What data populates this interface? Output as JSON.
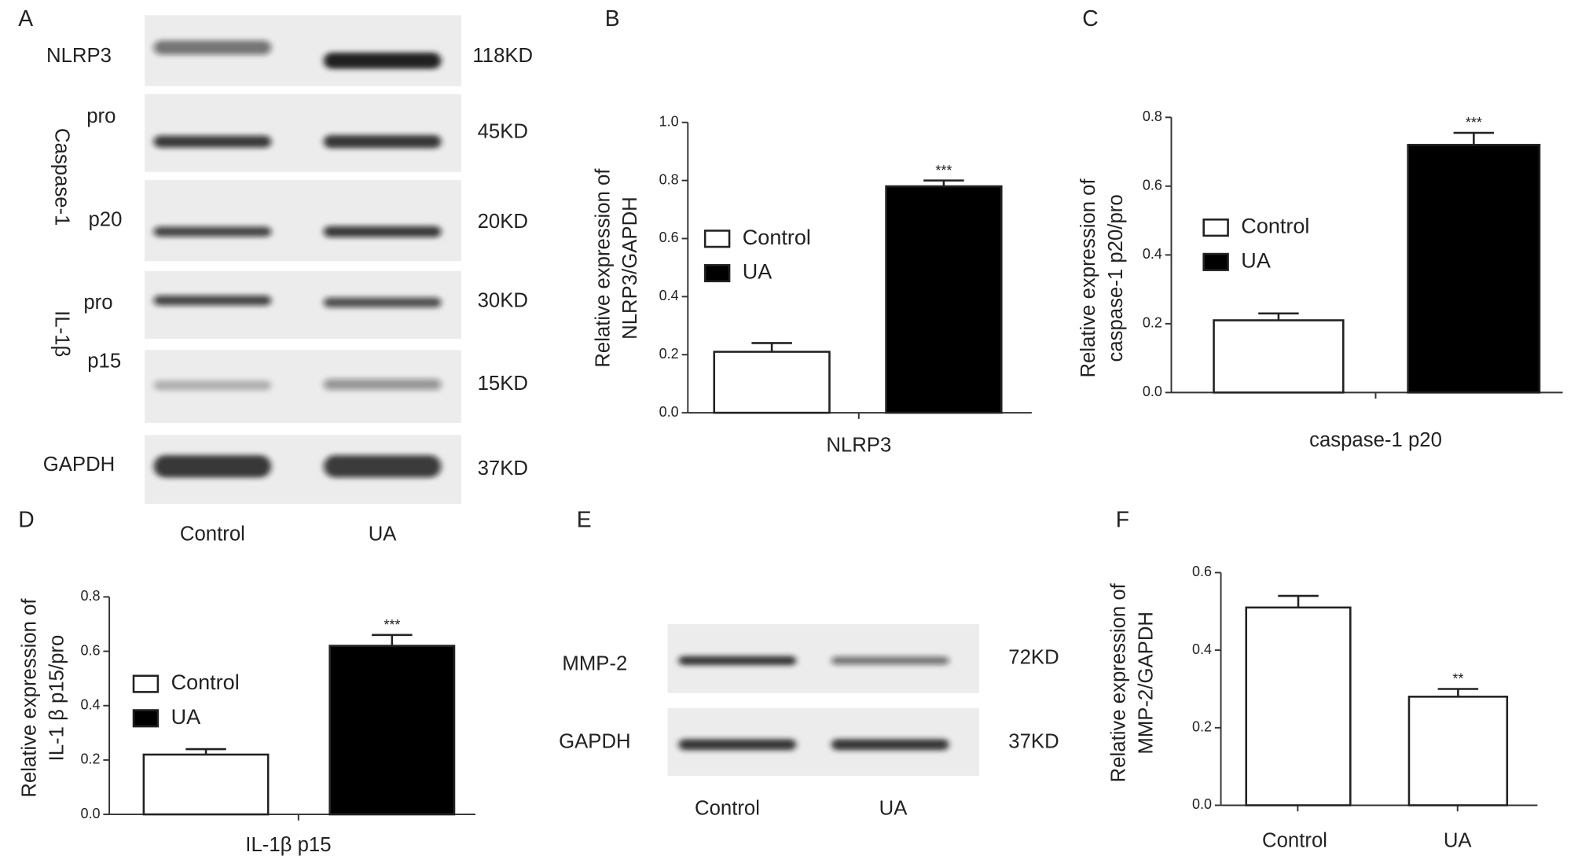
{
  "blots": [
    {
      "panel": "A",
      "lanes": [
        "Control",
        "UA"
      ],
      "groups": [
        {
          "rows": [
            {
              "label": "NLRP3",
              "size": "118KD"
            }
          ]
        },
        {
          "label": "Caspase-1",
          "rows": [
            {
              "label": "pro",
              "size": "45KD"
            },
            {
              "label": "p20",
              "size": "20KD"
            }
          ]
        },
        {
          "label": "IL-1β",
          "rows": [
            {
              "label": "pro",
              "size": "30KD"
            },
            {
              "label": "p15",
              "size": "15KD"
            }
          ]
        },
        {
          "rows": [
            {
              "label": "GAPDH",
              "size": "37KD"
            }
          ]
        }
      ]
    },
    {
      "panel": "E",
      "lanes": [
        "Control",
        "UA"
      ],
      "groups": [
        {
          "rows": [
            {
              "label": "MMP-2",
              "size": "72KD"
            },
            {
              "label": "GAPDH",
              "size": "37KD"
            }
          ]
        }
      ]
    }
  ],
  "chart_data": [
    {
      "type": "bar",
      "panel": "B",
      "ylabel": [
        "Relative expression of",
        "NLRP3/GAPDH"
      ],
      "categories": [
        "NLRP3"
      ],
      "series": [
        {
          "name": "Control",
          "color": "#ffffff",
          "values": [
            0.21
          ],
          "errors": [
            0.03
          ],
          "annotations": [
            null
          ]
        },
        {
          "name": "UA",
          "color": "#000000",
          "values": [
            0.78
          ],
          "errors": [
            0.02
          ],
          "annotations": [
            "***"
          ]
        }
      ],
      "ylim": [
        0,
        1
      ],
      "yticks": [
        {
          "value": 0,
          "label": "0.0"
        },
        0.2,
        0.4,
        0.6,
        0.8,
        {
          "value": 1,
          "label": "1.0"
        }
      ]
    },
    {
      "type": "bar",
      "panel": "C",
      "ylabel": [
        "Relative expression of",
        "caspase-1 p20/pro"
      ],
      "categories": [
        "caspase-1 p20"
      ],
      "series": [
        {
          "name": "Control",
          "color": "#ffffff",
          "values": [
            0.21
          ],
          "errors": [
            0.02
          ],
          "annotations": [
            null
          ]
        },
        {
          "name": "UA",
          "color": "#000000",
          "values": [
            0.72
          ],
          "errors": [
            0.035
          ],
          "annotations": [
            "***"
          ]
        }
      ],
      "ylim": [
        0,
        0.8
      ],
      "yticks": [
        {
          "value": 0,
          "label": "0.0"
        },
        0.2,
        0.4,
        0.6,
        0.8
      ]
    },
    {
      "type": "bar",
      "panel": "D",
      "ylabel": [
        "Relative expression of",
        "IL-1 β p15/pro"
      ],
      "categories": [
        "IL-1β p15"
      ],
      "series": [
        {
          "name": "Control",
          "color": "#ffffff",
          "values": [
            0.22
          ],
          "errors": [
            0.02
          ],
          "annotations": [
            null
          ]
        },
        {
          "name": "UA",
          "color": "#000000",
          "values": [
            0.62
          ],
          "errors": [
            0.04
          ],
          "annotations": [
            "***"
          ]
        }
      ],
      "ylim": [
        0,
        0.8
      ],
      "yticks": [
        {
          "value": 0,
          "label": "0.0"
        },
        0.2,
        0.4,
        0.6,
        0.8
      ]
    },
    {
      "type": "bar",
      "panel": "F",
      "ylabel": [
        "Relative expression of",
        "MMP-2/GAPDH"
      ],
      "categories": [
        "Control",
        "UA"
      ],
      "series": [
        {
          "color": "#ffffff",
          "values": [
            0.51,
            0.28
          ],
          "errors": [
            0.03,
            0.02
          ],
          "annotations": [
            null,
            "**"
          ]
        }
      ],
      "ylim": [
        0,
        0.6
      ],
      "yticks": [
        {
          "value": 0,
          "label": "0.0"
        },
        0.2,
        0.4,
        0.6
      ]
    }
  ]
}
